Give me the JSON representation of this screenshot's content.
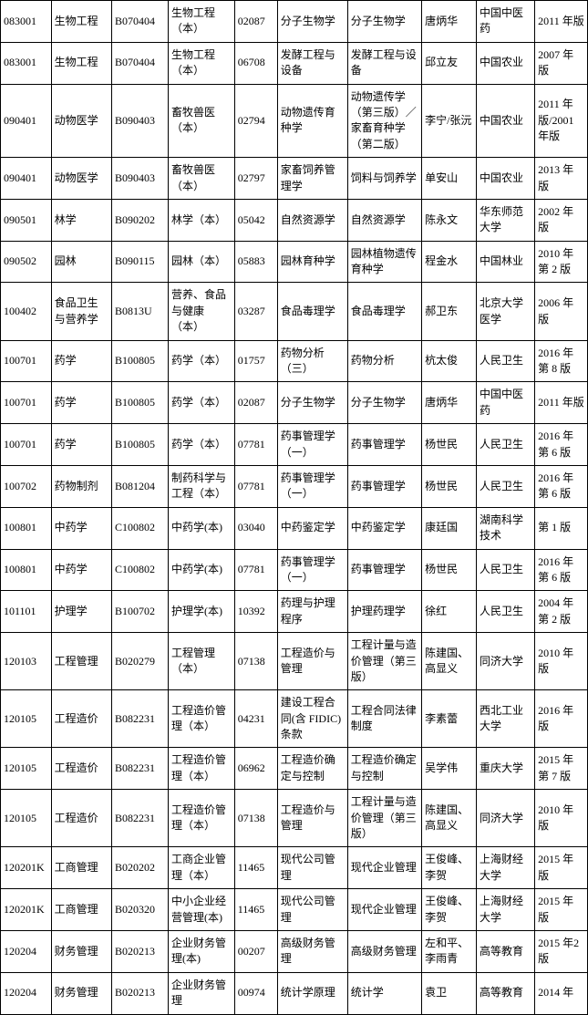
{
  "table": {
    "columns": [
      {
        "class": "c0"
      },
      {
        "class": "c1"
      },
      {
        "class": "c2"
      },
      {
        "class": "c3"
      },
      {
        "class": "c4"
      },
      {
        "class": "c5"
      },
      {
        "class": "c6"
      },
      {
        "class": "c7"
      },
      {
        "class": "c8"
      },
      {
        "class": "c9"
      }
    ],
    "rows": [
      [
        "083001",
        "生物工程",
        "B070404",
        "生物工程（本）",
        "02087",
        "分子生物学",
        "分子生物学",
        "唐炳华",
        "中国中医药",
        "2011 年版"
      ],
      [
        "083001",
        "生物工程",
        "B070404",
        "生物工程（本）",
        "06708",
        "发酵工程与设备",
        "发酵工程与设备",
        "邱立友",
        "中国农业",
        "2007 年版"
      ],
      [
        "090401",
        "动物医学",
        "B090403",
        "畜牧兽医（本）",
        "02794",
        "动物遗传育种学",
        "动物遗传学（第三版）／家畜育种学（第二版）",
        "李宁/张沅",
        "中国农业",
        "2011 年版/2001 年版"
      ],
      [
        "090401",
        "动物医学",
        "B090403",
        "畜牧兽医（本）",
        "02797",
        "家畜饲养管理学",
        "饲料与饲养学",
        "单安山",
        "中国农业",
        "2013 年版"
      ],
      [
        "090501",
        "林学",
        "B090202",
        "林学（本）",
        "05042",
        "自然资源学",
        "自然资源学",
        "陈永文",
        "华东师范大学",
        "2002 年版"
      ],
      [
        "090502",
        "园林",
        "B090115",
        "园林（本）",
        "05883",
        "园林育种学",
        "园林植物遗传育种学",
        "程金水",
        "中国林业",
        "2010 年第 2 版"
      ],
      [
        "100402",
        "食品卫生与营养学",
        "B0813U",
        "营养、食品与健康（本）",
        "03287",
        "食品毒理学",
        "食品毒理学",
        "郝卫东",
        "北京大学医学",
        "2006 年版"
      ],
      [
        "100701",
        "药学",
        "B100805",
        "药学（本）",
        "01757",
        "药物分析（三）",
        "药物分析",
        "杭太俊",
        "人民卫生",
        "2016 年第 8 版"
      ],
      [
        "100701",
        "药学",
        "B100805",
        "药学（本）",
        "02087",
        "分子生物学",
        "分子生物学",
        "唐炳华",
        "中国中医药",
        "2011 年版"
      ],
      [
        "100701",
        "药学",
        "B100805",
        "药学（本）",
        "07781",
        "药事管理学（一）",
        "药事管理学",
        "杨世民",
        "人民卫生",
        "2016 年第 6 版"
      ],
      [
        "100702",
        "药物制剂",
        "B081204",
        "制药科学与工程（本）",
        "07781",
        "药事管理学（一）",
        "药事管理学",
        "杨世民",
        "人民卫生",
        "2016 年第 6 版"
      ],
      [
        "100801",
        "中药学",
        "C100802",
        "中药学(本)",
        "03040",
        "中药鉴定学",
        "中药鉴定学",
        "康廷国",
        "湖南科学技术",
        "第 1 版"
      ],
      [
        "100801",
        "中药学",
        "C100802",
        "中药学(本)",
        "07781",
        "药事管理学（一）",
        "药事管理学",
        "杨世民",
        "人民卫生",
        "2016 年第 6 版"
      ],
      [
        "101101",
        "护理学",
        "B100702",
        "护理学(本)",
        "10392",
        "药理与护理程序",
        "护理药理学",
        "徐红",
        "人民卫生",
        "2004 年第 2 版"
      ],
      [
        "120103",
        "工程管理",
        "B020279",
        "工程管理（本）",
        "07138",
        "工程造价与管理",
        "工程计量与造价管理（第三版）",
        "陈建国、高显义",
        "同济大学",
        "2010 年版"
      ],
      [
        "120105",
        "工程造价",
        "B082231",
        "工程造价管理（本）",
        "04231",
        "建设工程合同(含 FIDIC)条款",
        "工程合同法律制度",
        "李素蕾",
        "西北工业大学",
        "2016 年版"
      ],
      [
        "120105",
        "工程造价",
        "B082231",
        "工程造价管理（本）",
        "06962",
        "工程造价确定与控制",
        "工程造价确定与控制",
        "吴学伟",
        "重庆大学",
        "2015 年第 7 版"
      ],
      [
        "120105",
        "工程造价",
        "B082231",
        "工程造价管理（本）",
        "07138",
        "工程造价与管理",
        "工程计量与造价管理（第三版）",
        "陈建国、高显义",
        "同济大学",
        "2010 年版"
      ],
      [
        "120201K",
        "工商管理",
        "B020202",
        "工商企业管理（本）",
        "11465",
        "现代公司管理",
        "现代企业管理",
        "王俊峰、李贺",
        "上海财经大学",
        "2015 年版"
      ],
      [
        "120201K",
        "工商管理",
        "B020320",
        "中小企业经营管理(本)",
        "11465",
        "现代公司管理",
        "现代企业管理",
        "王俊峰、李贺",
        "上海财经大学",
        "2015 年版"
      ],
      [
        "120204",
        "财务管理",
        "B020213",
        "企业财务管理(本)",
        "00207",
        "高级财务管理",
        "高级财务管理",
        "左和平、李雨青",
        "高等教育",
        "2015 年2 版"
      ],
      [
        "120204",
        "财务管理",
        "B020213",
        "企业财务管理",
        "00974",
        "统计学原理",
        "统计学",
        "袁卫",
        "高等教育",
        "2014 年"
      ]
    ]
  }
}
